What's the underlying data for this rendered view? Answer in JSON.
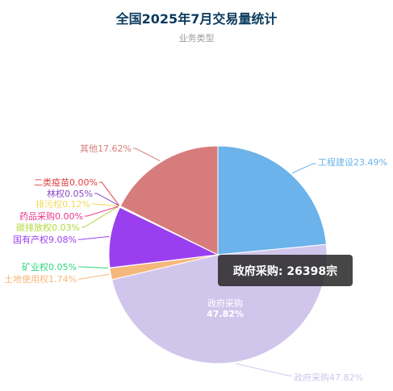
{
  "chart_data": {
    "type": "pie",
    "title": "全国2025年7月交易量统计",
    "legend_subtitle": "业务类型",
    "slices": [
      {
        "name": "工程建设",
        "percent": 23.49,
        "label": "工程建设23.49%",
        "color": "#6bb3ea"
      },
      {
        "name": "政府采购",
        "percent": 47.82,
        "label": "政府采购47.82%",
        "color": "#d0c6ec"
      },
      {
        "name": "土地使用权",
        "percent": 1.74,
        "label": "土地使用权1.74%",
        "color": "#f6b77c"
      },
      {
        "name": "矿业权",
        "percent": 0.05,
        "label": "矿业权0.05%",
        "color": "#2ed57a"
      },
      {
        "name": "国有产权",
        "percent": 9.08,
        "label": "国有产权9.08%",
        "color": "#9a3ff0"
      },
      {
        "name": "碳排放权",
        "percent": 0.03,
        "label": "碳排放权0.03%",
        "color": "#b6d640"
      },
      {
        "name": "药品采购",
        "percent": 0.0,
        "label": "药品采购0.00%",
        "color": "#e8388a"
      },
      {
        "name": "排污权",
        "percent": 0.12,
        "label": "排污权0.12%",
        "color": "#f2da5c"
      },
      {
        "name": "林权",
        "percent": 0.05,
        "label": "林权0.05%",
        "color": "#8a46c8"
      },
      {
        "name": "二类疫苗",
        "percent": 0.0,
        "label": "二类疫苗0.00%",
        "color": "#e04040"
      },
      {
        "name": "其他",
        "percent": 17.62,
        "label": "其他17.62%",
        "color": "#d77c7c"
      }
    ],
    "inner_label": {
      "name": "政府采购",
      "value": "47.82%"
    },
    "tooltip": "政府采购: 26398宗"
  }
}
